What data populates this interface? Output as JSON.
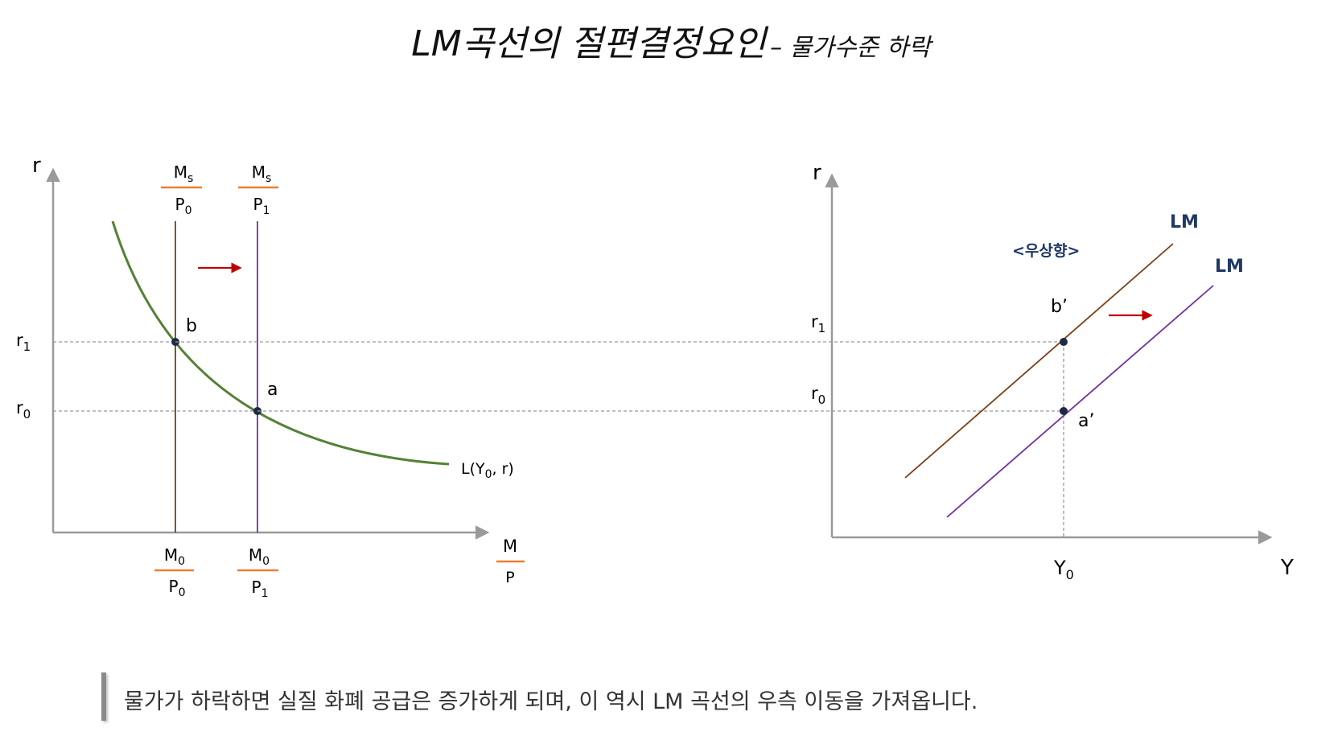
{
  "title": {
    "main": "LM곡선의 절편결정요인",
    "sub": "– 물가수준 하락"
  },
  "left_panel": {
    "y_axis_label": "r",
    "x_axis_num": "M",
    "x_axis_den": "P",
    "supply_top_1": {
      "num_base": "M",
      "num_sub": "s",
      "den_base": "P",
      "den_sub": "0"
    },
    "supply_top_2": {
      "num_base": "M",
      "num_sub": "s",
      "den_base": "P",
      "den_sub": "1"
    },
    "supply_bottom_1": {
      "num_base": "M",
      "num_sub": "0",
      "den_base": "P",
      "den_sub": "0"
    },
    "supply_bottom_2": {
      "num_base": "M",
      "num_sub": "0",
      "den_base": "P",
      "den_sub": "1"
    },
    "r1": {
      "base": "r",
      "sub": "1"
    },
    "r0": {
      "base": "r",
      "sub": "0"
    },
    "point_b": "b",
    "point_a": "a",
    "demand_label": {
      "prefix": "L(Y",
      "sub": "0",
      "suffix": ", r)"
    }
  },
  "right_panel": {
    "y_axis_label": "r",
    "x_axis_label": "Y",
    "r1": {
      "base": "r",
      "sub": "1"
    },
    "r0": {
      "base": "r",
      "sub": "0"
    },
    "y0": {
      "base": "Y",
      "sub": "0"
    },
    "lm_label_1": "LM",
    "lm_label_2": "LM",
    "shift_label": "<우상향>",
    "point_b": "b’",
    "point_a": "a’"
  },
  "caption": "물가가 하락하면 실질 화폐 공급은 증가하게 되며, 이 역시 LM 곡선의 우측 이동을 가져옵니다.",
  "colors": {
    "ms0_line": "#7b3f16",
    "ms1_line": "#7030a0",
    "demand_curve": "#548235",
    "fraction_bar": "#ed7d31",
    "arrow": "#c00000",
    "lm_label": "#1f3864",
    "axis": "#9a9a9a",
    "dashed": "#9a9a9a"
  }
}
